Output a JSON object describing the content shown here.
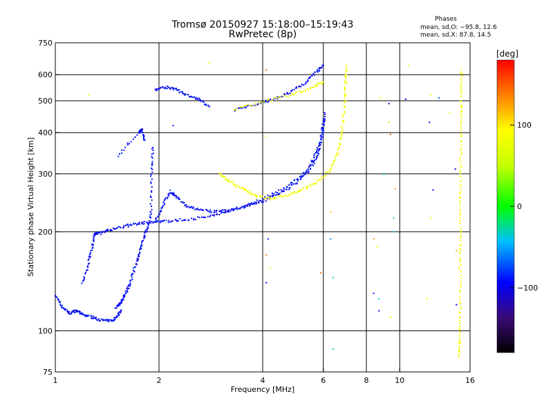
{
  "chart_data": {
    "type": "scatter",
    "title": "Tromsø 20150927 15:18:00–15:19:43",
    "subtitle": "RwPretec (8p)",
    "phases": {
      "heading": "Phases",
      "line_o": "mean, sd,O: −95.8, 12.6",
      "line_x": "mean, sd,X:  87.8, 14.5"
    },
    "xlabel": "Frequency [MHz]",
    "ylabel": "Stationary phase Virtual Height [km]",
    "x_scale": "log",
    "y_scale": "log",
    "xlim": [
      1,
      16
    ],
    "ylim": [
      75,
      750
    ],
    "x_ticks": [
      1,
      2,
      4,
      6,
      8,
      10,
      16
    ],
    "x_tick_labels": [
      "1",
      "2",
      "4",
      "6",
      "8",
      "10",
      "16"
    ],
    "x_gridlines": [
      2,
      4,
      6,
      8,
      10
    ],
    "y_ticks": [
      75,
      100,
      200,
      300,
      400,
      500,
      600,
      750
    ],
    "y_tick_labels": [
      "75",
      "100",
      "200",
      "300",
      "400",
      "500",
      "600",
      "750"
    ],
    "y_gridlines": [
      100,
      200,
      300,
      400,
      500,
      600
    ],
    "grid": true,
    "colorbar": {
      "label": "[deg]",
      "range": [
        -180,
        180
      ],
      "tick_values": [
        100,
        0,
        -100
      ],
      "tick_labels": [
        "100",
        "0",
        "−100"
      ]
    },
    "series": [
      {
        "traces": [
          {
            "phase": -100,
            "points": [
              [
                1.0,
                128
              ],
              [
                1.05,
                118
              ],
              [
                1.1,
                113
              ],
              [
                1.15,
                115
              ],
              [
                1.2,
                112
              ],
              [
                1.28,
                110
              ],
              [
                1.35,
                108
              ],
              [
                1.45,
                107
              ],
              [
                1.5,
                110
              ],
              [
                1.55,
                115
              ]
            ]
          },
          {
            "phase": -100,
            "points": [
              [
                1.2,
                140
              ],
              [
                1.25,
                160
              ],
              [
                1.28,
                180
              ],
              [
                1.3,
                198
              ],
              [
                1.35,
                198
              ],
              [
                1.45,
                203
              ],
              [
                1.6,
                208
              ],
              [
                1.75,
                212
              ],
              [
                1.9,
                214
              ],
              [
                2.1,
                215
              ],
              [
                2.4,
                218
              ],
              [
                2.8,
                222
              ],
              [
                3.2,
                232
              ],
              [
                3.6,
                240
              ],
              [
                4.0,
                248
              ],
              [
                4.5,
                262
              ],
              [
                5.0,
                280
              ],
              [
                5.5,
                310
              ],
              [
                5.8,
                345
              ],
              [
                5.95,
                390
              ],
              [
                6.05,
                440
              ]
            ]
          },
          {
            "phase": -100,
            "points": [
              [
                1.5,
                118
              ],
              [
                1.55,
                122
              ],
              [
                1.6,
                130
              ],
              [
                1.65,
                140
              ],
              [
                1.7,
                155
              ],
              [
                1.75,
                170
              ],
              [
                1.8,
                190
              ],
              [
                1.85,
                205
              ],
              [
                1.9,
                230
              ],
              [
                1.9,
                300
              ],
              [
                1.92,
                360
              ]
            ]
          },
          {
            "phase": -100,
            "points": [
              [
                1.95,
                215
              ],
              [
                2.05,
                240
              ],
              [
                2.15,
                265
              ],
              [
                2.25,
                255
              ],
              [
                2.4,
                240
              ],
              [
                2.6,
                233
              ],
              [
                2.9,
                230
              ],
              [
                3.2,
                232
              ],
              [
                3.6,
                240
              ],
              [
                4.0,
                252
              ],
              [
                4.6,
                270
              ],
              [
                5.2,
                295
              ],
              [
                5.6,
                330
              ],
              [
                5.9,
                380
              ],
              [
                6.05,
                460
              ]
            ]
          },
          {
            "phase": -100,
            "points": [
              [
                1.95,
                540
              ],
              [
                2.1,
                550
              ],
              [
                2.25,
                540
              ],
              [
                2.4,
                520
              ],
              [
                2.6,
                505
              ],
              [
                2.8,
                480
              ]
            ]
          },
          {
            "phase": -100,
            "points": [
              [
                3.3,
                470
              ],
              [
                3.8,
                485
              ],
              [
                4.3,
                505
              ],
              [
                4.8,
                530
              ],
              [
                5.3,
                565
              ],
              [
                5.7,
                610
              ],
              [
                6.0,
                640
              ]
            ]
          },
          {
            "phase": -100,
            "points": [
              [
                1.52,
                340
              ],
              [
                1.75,
                400
              ],
              [
                1.78,
                410
              ],
              [
                1.82,
                380
              ]
            ]
          }
        ]
      },
      {
        "traces": [
          {
            "phase": 85,
            "points": [
              [
                3.0,
                300
              ],
              [
                3.2,
                285
              ],
              [
                3.5,
                270
              ],
              [
                3.8,
                258
              ],
              [
                4.2,
                252
              ],
              [
                4.7,
                258
              ],
              [
                5.2,
                268
              ],
              [
                5.8,
                285
              ],
              [
                6.3,
                310
              ],
              [
                6.6,
                345
              ],
              [
                6.8,
                400
              ],
              [
                6.9,
                480
              ],
              [
                6.95,
                560
              ],
              [
                7.0,
                640
              ]
            ]
          },
          {
            "phase": 85,
            "points": [
              [
                3.3,
                470
              ],
              [
                4.0,
                495
              ],
              [
                4.8,
                520
              ],
              [
                5.5,
                545
              ],
              [
                6.0,
                570
              ]
            ]
          },
          {
            "phase": 85,
            "points": [
              [
                14.9,
                84
              ],
              [
                14.9,
                95
              ],
              [
                15.0,
                120
              ],
              [
                15.0,
                160
              ],
              [
                15.0,
                200
              ],
              [
                15.0,
                260
              ],
              [
                15.05,
                330
              ],
              [
                15.1,
                420
              ],
              [
                15.1,
                520
              ],
              [
                15.1,
                620
              ]
            ]
          }
        ]
      }
    ],
    "noise": [
      {
        "x": 1.25,
        "y": 520,
        "phase": 85
      },
      {
        "x": 2.2,
        "y": 420,
        "phase": -90
      },
      {
        "x": 2.8,
        "y": 650,
        "phase": 90
      },
      {
        "x": 4.1,
        "y": 620,
        "phase": 150
      },
      {
        "x": 4.1,
        "y": 390,
        "phase": 80
      },
      {
        "x": 4.15,
        "y": 190,
        "phase": -90
      },
      {
        "x": 4.1,
        "y": 170,
        "phase": 140
      },
      {
        "x": 4.2,
        "y": 155,
        "phase": 80
      },
      {
        "x": 4.1,
        "y": 140,
        "phase": -100
      },
      {
        "x": 5.9,
        "y": 150,
        "phase": 150
      },
      {
        "x": 6.3,
        "y": 190,
        "phase": -60
      },
      {
        "x": 6.3,
        "y": 230,
        "phase": 120
      },
      {
        "x": 6.4,
        "y": 88,
        "phase": -20
      },
      {
        "x": 6.4,
        "y": 145,
        "phase": -20
      },
      {
        "x": 8.4,
        "y": 190,
        "phase": 130
      },
      {
        "x": 8.6,
        "y": 180,
        "phase": 95
      },
      {
        "x": 8.4,
        "y": 130,
        "phase": -90
      },
      {
        "x": 8.7,
        "y": 125,
        "phase": -40
      },
      {
        "x": 8.7,
        "y": 115,
        "phase": -110
      },
      {
        "x": 9.4,
        "y": 110,
        "phase": 100
      },
      {
        "x": 9.0,
        "y": 300,
        "phase": -20
      },
      {
        "x": 9.4,
        "y": 395,
        "phase": 150
      },
      {
        "x": 9.3,
        "y": 430,
        "phase": 110
      },
      {
        "x": 8.8,
        "y": 510,
        "phase": 90
      },
      {
        "x": 9.3,
        "y": 490,
        "phase": -100
      },
      {
        "x": 9.7,
        "y": 270,
        "phase": 130
      },
      {
        "x": 9.6,
        "y": 220,
        "phase": -20
      },
      {
        "x": 9.6,
        "y": 200,
        "phase": -40
      },
      {
        "x": 10.4,
        "y": 505,
        "phase": -100
      },
      {
        "x": 10.6,
        "y": 640,
        "phase": 90
      },
      {
        "x": 12.3,
        "y": 520,
        "phase": 90
      },
      {
        "x": 12.3,
        "y": 220,
        "phase": 90
      },
      {
        "x": 12.5,
        "y": 268,
        "phase": -100
      },
      {
        "x": 12.2,
        "y": 430,
        "phase": -110
      },
      {
        "x": 13.0,
        "y": 510,
        "phase": -80
      },
      {
        "x": 14.0,
        "y": 460,
        "phase": 90
      },
      {
        "x": 14.5,
        "y": 310,
        "phase": -100
      },
      {
        "x": 14.6,
        "y": 175,
        "phase": 130
      },
      {
        "x": 12.0,
        "y": 125,
        "phase": 100
      },
      {
        "x": 14.6,
        "y": 120,
        "phase": -100
      }
    ]
  }
}
